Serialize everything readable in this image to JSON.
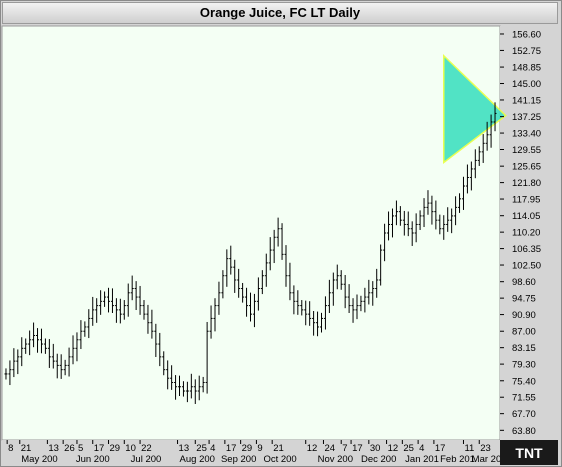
{
  "window": {
    "title": "Orange Juice, FC LT Daily"
  },
  "logo": {
    "text": "TNT"
  },
  "colors": {
    "plot_bg": "#f4fff4",
    "bars": "#000000",
    "triangle_fill": "#40e0c0",
    "triangle_edge": "#e8ff40",
    "frame": "#d4d4d4"
  },
  "chart_data": {
    "type": "ohlc",
    "title": "Orange Juice, FC LT Daily",
    "ylim": [
      62.0,
      158.0
    ],
    "y_ticks": [
      "156.60",
      "152.75",
      "148.85",
      "145.00",
      "141.15",
      "137.25",
      "133.40",
      "129.55",
      "125.65",
      "121.80",
      "117.95",
      "114.05",
      "110.20",
      "106.35",
      "102.50",
      "98.60",
      "94.75",
      "90.90",
      "87.00",
      "83.15",
      "79.30",
      "75.40",
      "71.55",
      "67.70",
      "63.80"
    ],
    "x_day_labels": [
      "8",
      "21",
      "13",
      "26",
      "5",
      "17",
      "29",
      "10",
      "22",
      "13",
      "25",
      "4",
      "17",
      "29",
      "9",
      "21",
      "12",
      "24",
      "7",
      "17",
      "30",
      "12",
      "25",
      "4",
      "17",
      "11",
      "23"
    ],
    "x_month_labels": [
      "May 200",
      "Jun 200",
      "Jul 200",
      "Aug 200",
      "Sep 200",
      "Oct 200",
      "Nov 200",
      "Dec 200",
      "Jan 201",
      "Feb 201",
      "Mar 201"
    ],
    "x_count": 125,
    "series": [
      {
        "closes": [
          77,
          78,
          80,
          81,
          83,
          84,
          85,
          86,
          85,
          84,
          83,
          81,
          80,
          79,
          78,
          79,
          81,
          83,
          85,
          87,
          88,
          90,
          92,
          93,
          94,
          95,
          94,
          93,
          92,
          91,
          93,
          96,
          97,
          95,
          93,
          91,
          89,
          87,
          84,
          81,
          78,
          76,
          75,
          74,
          74,
          73,
          73,
          74,
          73,
          74,
          75,
          87,
          90,
          93,
          96,
          100,
          104,
          102,
          99,
          97,
          95,
          93,
          91,
          94,
          97,
          100,
          103,
          106,
          109,
          111,
          105,
          100,
          96,
          94,
          93,
          92,
          91,
          90,
          89,
          88,
          90,
          93,
          96,
          99,
          100,
          98,
          95,
          93,
          92,
          93,
          94,
          95,
          96,
          97,
          99,
          106,
          110,
          112,
          114,
          115,
          113,
          112,
          111,
          110,
          112,
          114,
          116,
          117,
          115,
          113,
          111,
          112,
          113,
          114,
          116,
          118,
          121,
          123,
          125,
          127,
          129,
          131,
          133,
          136,
          138
        ],
        "range": 2.6
      }
    ],
    "overlays": [
      {
        "type": "triangle",
        "fill": "#40e0c0"
      }
    ]
  }
}
